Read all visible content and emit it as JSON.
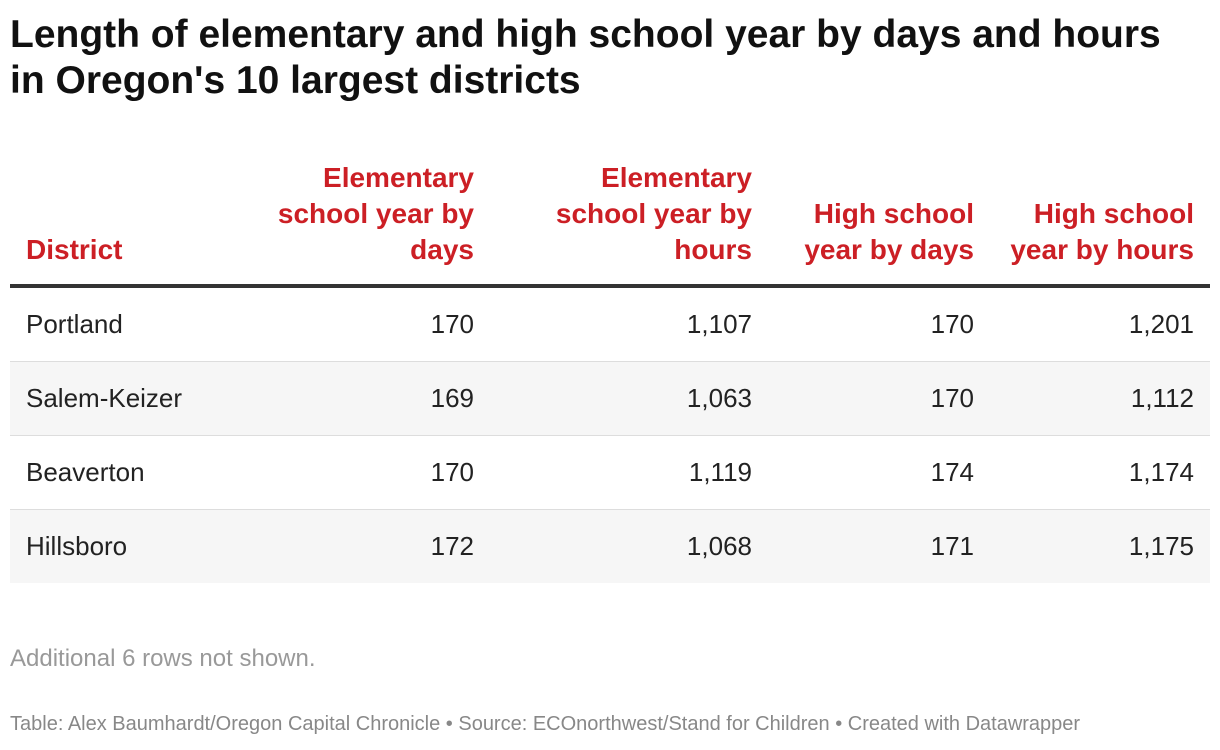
{
  "chart_data": {
    "type": "table",
    "title": "Length of elementary and high school year by days and hours in Oregon's 10 largest districts",
    "columns": [
      "District",
      "Elementary school year by days",
      "Elementary school year by hours",
      "High school year by days",
      "High school year by hours"
    ],
    "rows": [
      [
        "Portland",
        "170",
        "1,107",
        "170",
        "1,201"
      ],
      [
        "Salem-Keizer",
        "169",
        "1,063",
        "170",
        "1,112"
      ],
      [
        "Beaverton",
        "170",
        "1,119",
        "174",
        "1,174"
      ],
      [
        "Hillsboro",
        "172",
        "1,068",
        "171",
        "1,175"
      ]
    ],
    "notes": "Additional 6 rows not shown.",
    "footer": "Table: Alex Baumhardt/Oregon Capital Chronicle • Source: ECOnorthwest/Stand for Children • Created with Datawrapper"
  },
  "colors": {
    "header_text": "#cc1f25",
    "stripe": "#f6f6f6",
    "rule": "#333333"
  }
}
